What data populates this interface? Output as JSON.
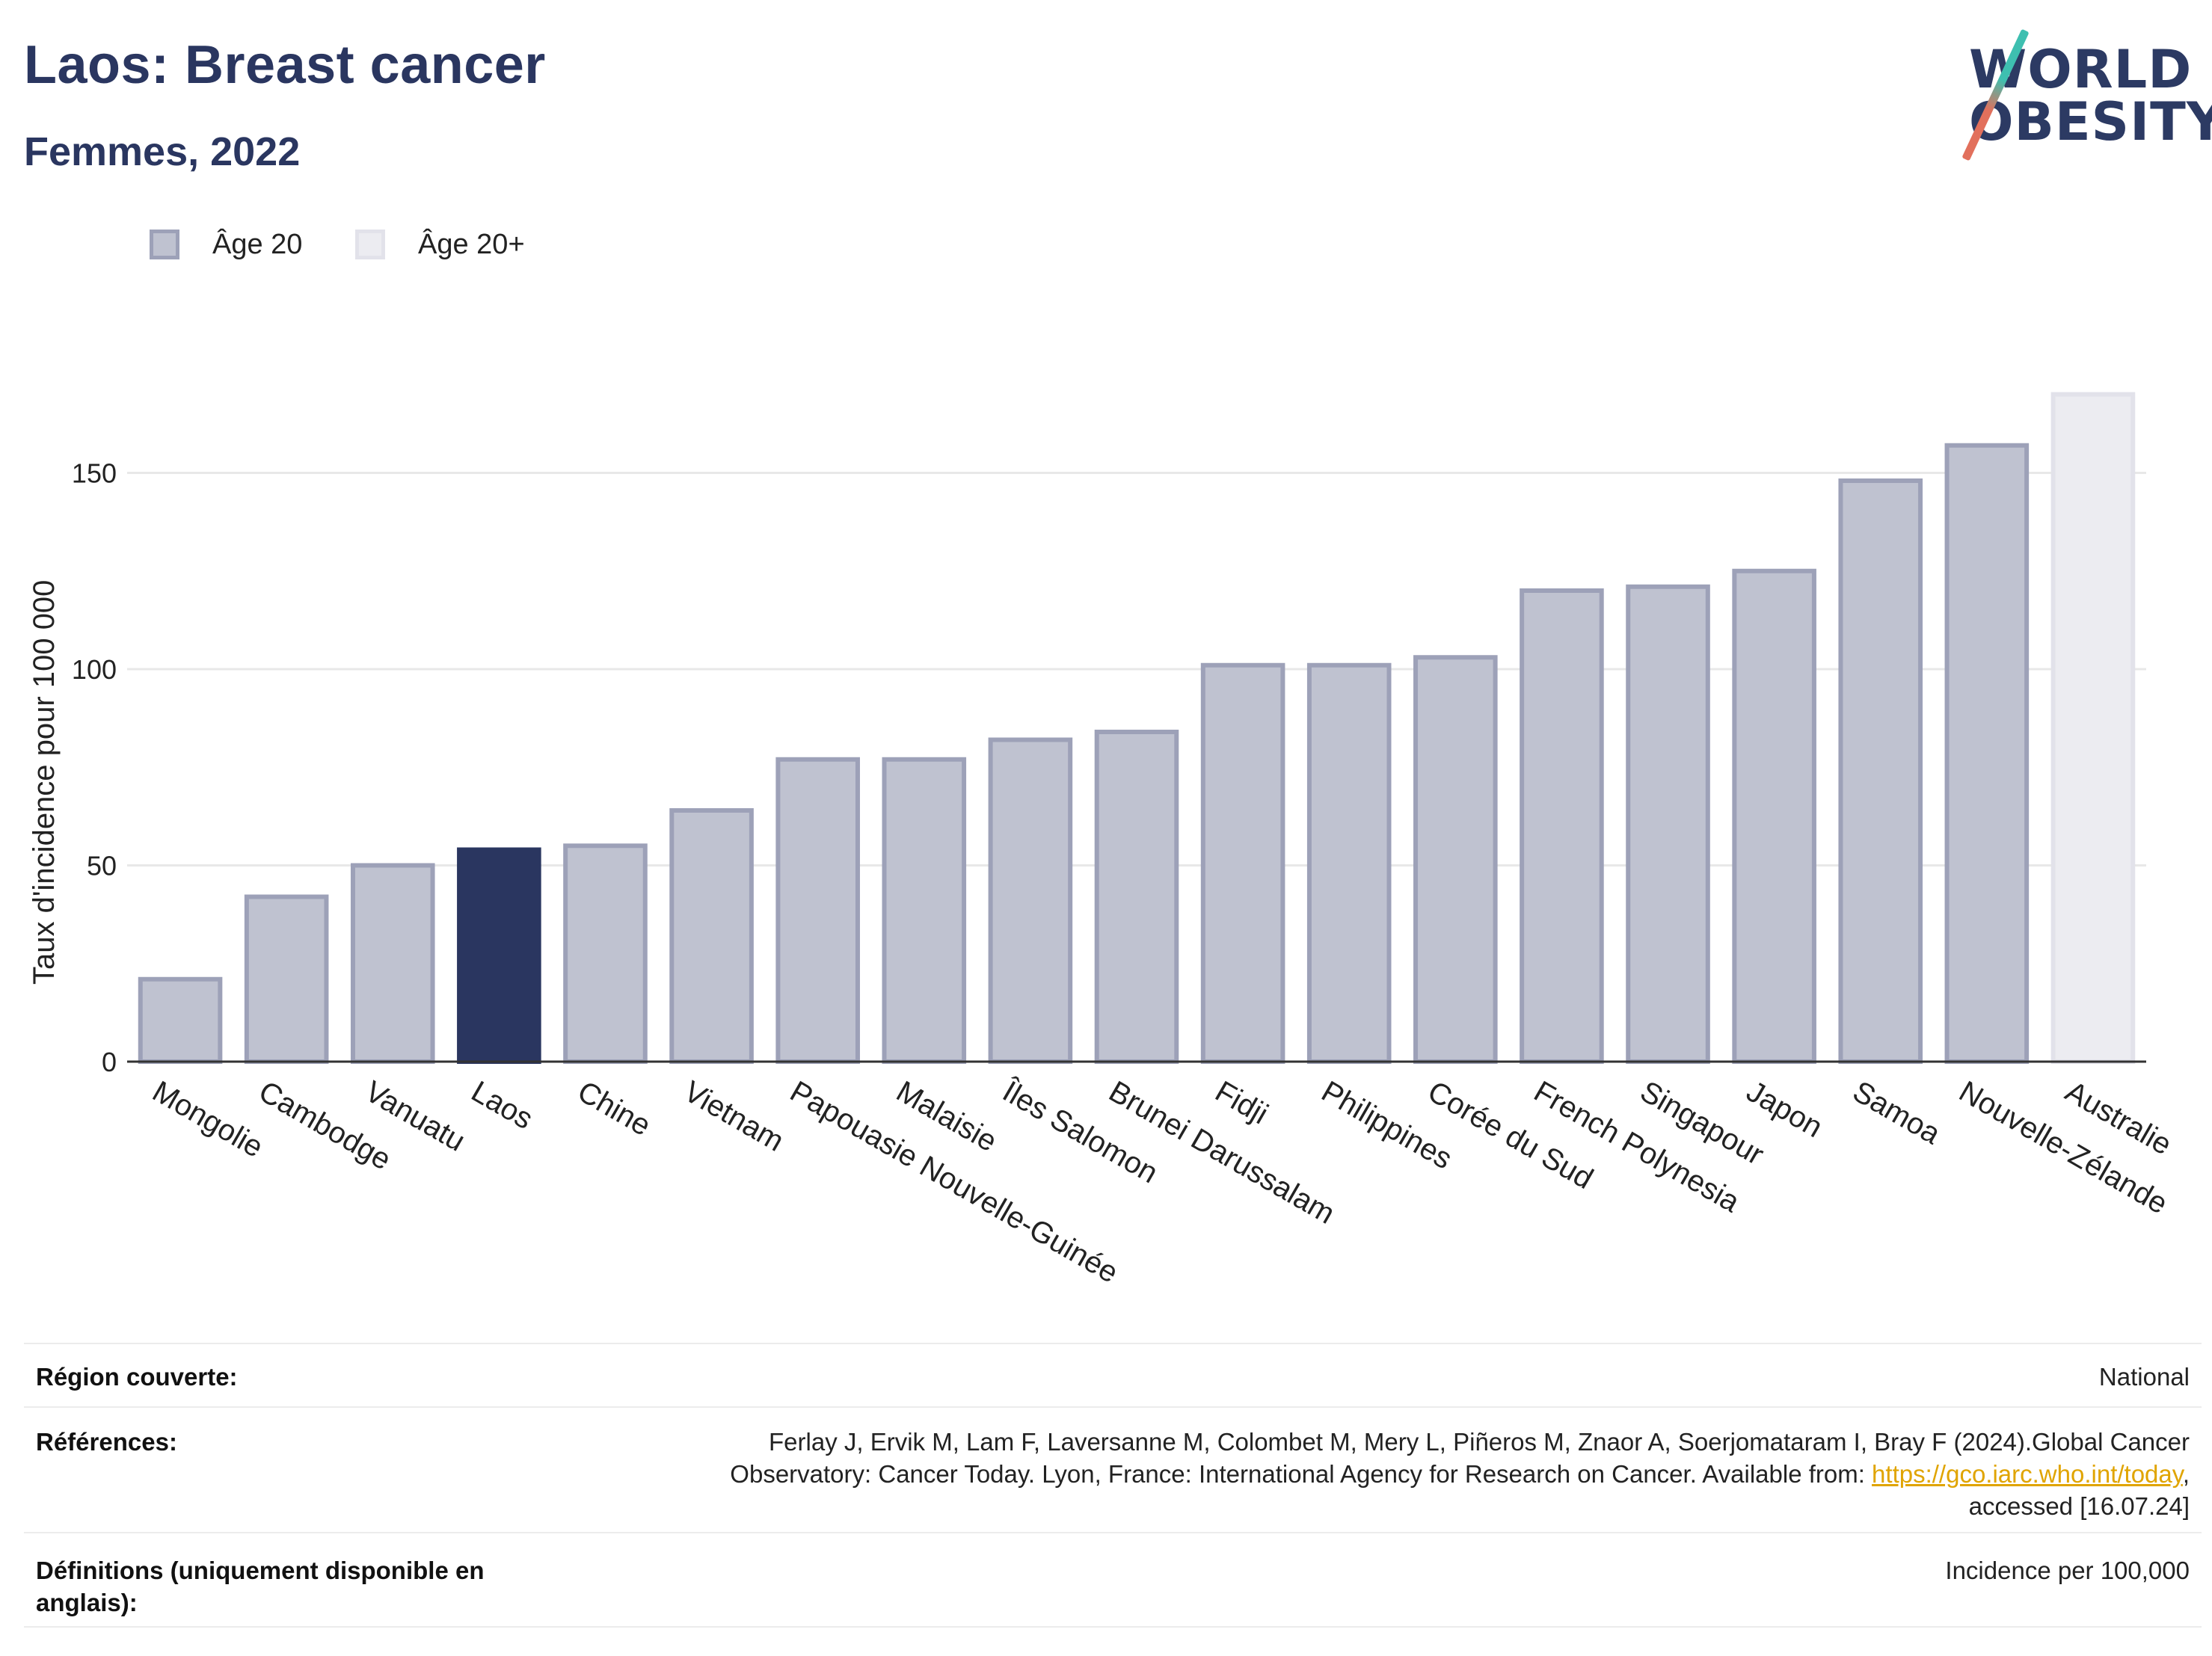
{
  "header": {
    "title": "Laos: Breast cancer",
    "subtitle": "Femmes, 2022",
    "logo_line1": "WORLD",
    "logo_line2": "OBESITY"
  },
  "legend": [
    {
      "label": "Âge 20",
      "fill": "#bfc2d0",
      "stroke": "#9da1b8"
    },
    {
      "label": "Âge 20+",
      "fill": "#ececf1",
      "stroke": "#e2e2ea"
    }
  ],
  "colors": {
    "bar_fill": "#bfc2d0",
    "bar_stroke": "#9da1b8",
    "highlight": "#2a3660",
    "age20plus_fill": "#ececf1",
    "age20plus_stroke": "#e2e2ea",
    "grid": "#e8e8e8",
    "axis": "#333333"
  },
  "chart_data": {
    "type": "bar",
    "ylabel": "Taux d'incidence pour 100 000",
    "xlabel": "",
    "ylim": [
      0,
      180
    ],
    "yticks": [
      0,
      50,
      100,
      150
    ],
    "grid": true,
    "legend_position": "top-left",
    "highlight": "Laos",
    "categories": [
      "Mongolie",
      "Cambodge",
      "Vanuatu",
      "Laos",
      "Chine",
      "Vietnam",
      "Papouasie Nouvelle-Guinée",
      "Malaisie",
      "Îles Salomon",
      "Brunei Darussalam",
      "Fidji",
      "Philippines",
      "Corée du Sud",
      "French Polynesia",
      "Singapour",
      "Japon",
      "Samoa",
      "Nouvelle-Zélande",
      "Australie"
    ],
    "values": [
      21,
      42,
      50,
      54,
      55,
      64,
      77,
      77,
      82,
      84,
      101,
      101,
      103,
      120,
      121,
      125,
      148,
      157,
      170
    ],
    "series_of_category": [
      "Âge 20",
      "Âge 20",
      "Âge 20",
      "Âge 20",
      "Âge 20",
      "Âge 20",
      "Âge 20",
      "Âge 20",
      "Âge 20",
      "Âge 20",
      "Âge 20",
      "Âge 20",
      "Âge 20",
      "Âge 20",
      "Âge 20",
      "Âge 20",
      "Âge 20",
      "Âge 20",
      "Âge 20+"
    ]
  },
  "info": {
    "region_label": "Région couverte:",
    "region_value": "National",
    "references_label": "Références:",
    "references_line1": "Ferlay J, Ervik M, Lam F, Laversanne M, Colombet M, Mery L, Piñeros M, Znaor A, Soerjomataram I, Bray F (2024).Global Cancer",
    "references_line2_pre": "Observatory: Cancer Today. Lyon, France: International Agency for Research on Cancer. Available from: ",
    "references_link": "https://gco.iarc.who.int/today",
    "references_line2_post": ",",
    "references_line3": "accessed [16.07.24]",
    "definitions_label_line1": "Définitions (uniquement disponible en",
    "definitions_label_line2": "anglais):",
    "definitions_value": "Incidence per 100,000"
  }
}
